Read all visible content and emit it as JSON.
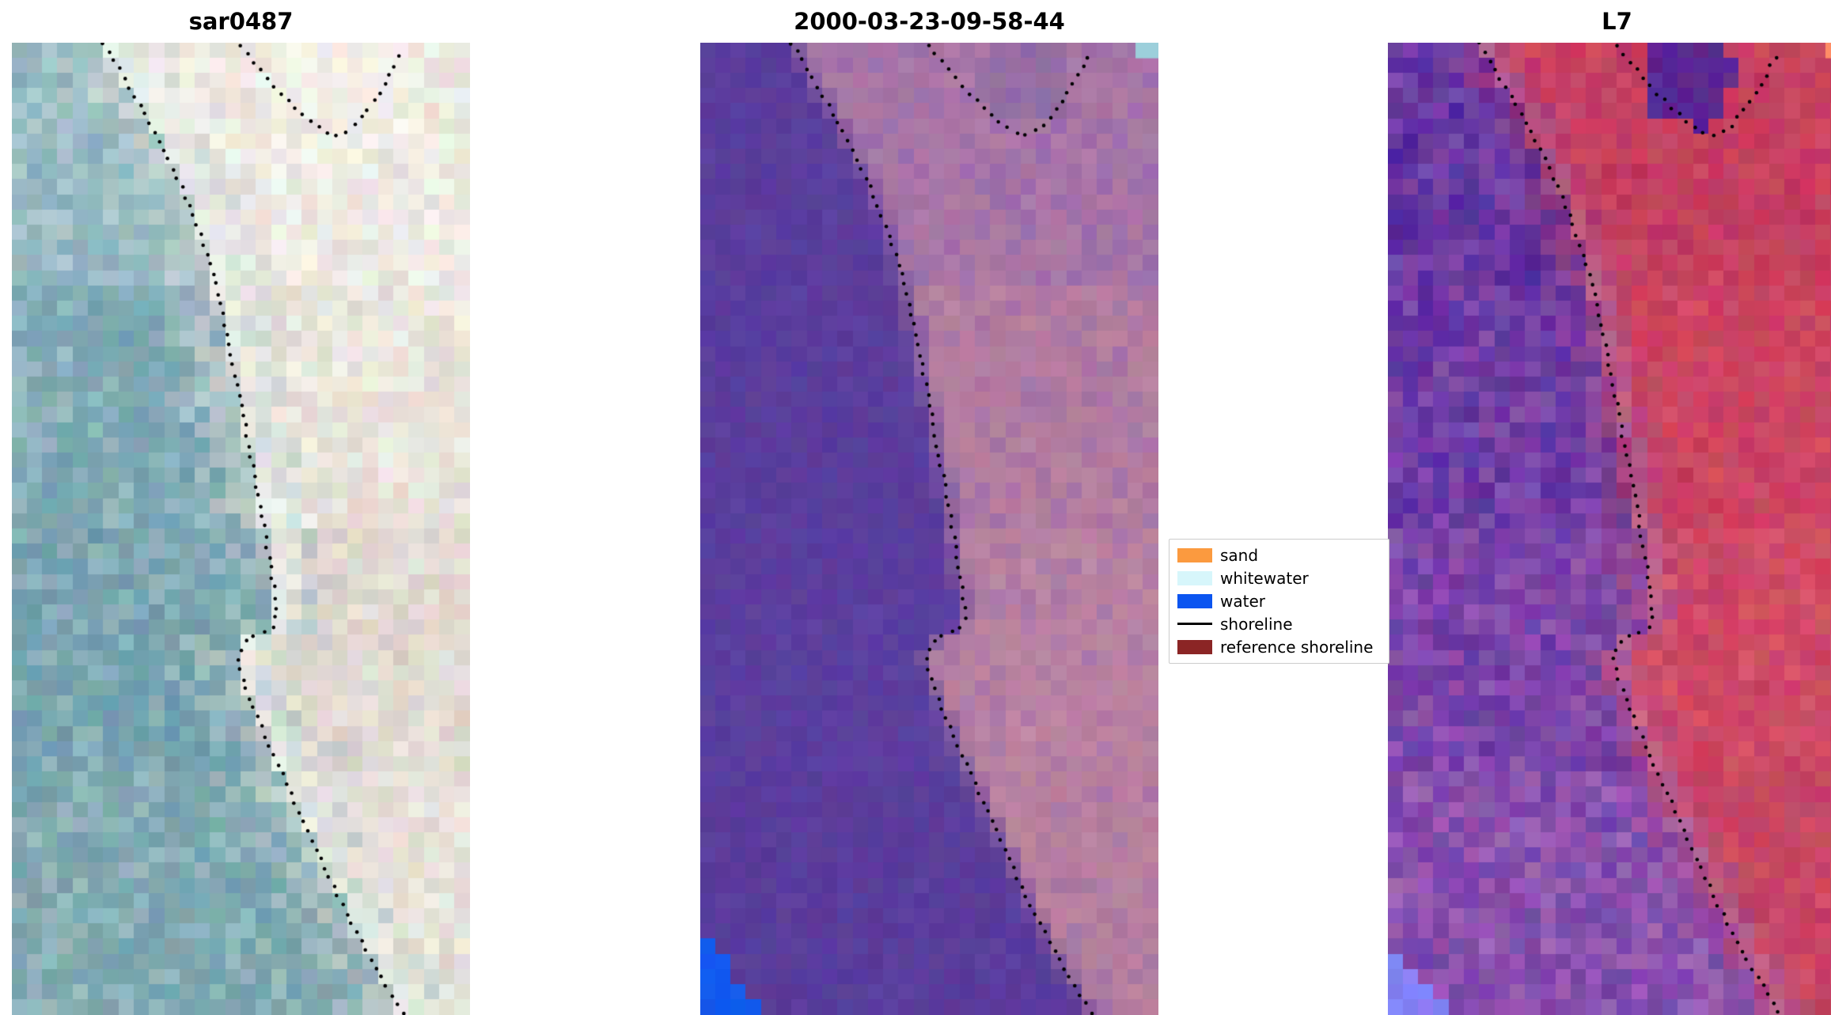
{
  "chart_data": {
    "type": "image",
    "panels": [
      {
        "title": "sar0487",
        "kind": "rgb-satellite-image",
        "render": {
          "seed": 11,
          "water": [
            "#a9c7cd",
            "#7fa9b4",
            "#6d9cab",
            "#7fa7ae"
          ],
          "land": [
            "#f4f2ec",
            "#ece7df",
            "#dcd2c8",
            "#e4ded4"
          ],
          "transition": 0.16,
          "noise": 0.45,
          "jitter": 10,
          "band": {
            "color": "#f8f7f1",
            "w": 0.1,
            "mix": 0.8
          },
          "corner_bl": null,
          "corner_tr": null,
          "blob": {
            "cx": 0.7,
            "cy": 0.035,
            "rx": 0.16,
            "ry": 0.06,
            "color": "#f5f3ea",
            "alpha": 0.8
          }
        }
      },
      {
        "title": "2000-03-23-09-58-44",
        "kind": "classified-image",
        "render": {
          "seed": 22,
          "water": [
            "#5a3d9c",
            "#5a3d9c",
            "#5c3fa0",
            "#593c9a"
          ],
          "land": [
            "#9d6dab",
            "#b27c9f",
            "#bd86a3",
            "#b77f9d"
          ],
          "transition": 0.035,
          "noise": 0.18,
          "jitter": 7,
          "band": null,
          "corner_bl": {
            "color": "#1159ee",
            "sy": 0.905,
            "mw": 0.135
          },
          "corner_tr": {
            "color": "#9ccfdb",
            "w": 0.05,
            "h": 0.016
          },
          "blob": {
            "cx": 0.7,
            "cy": 0.04,
            "rx": 0.13,
            "ry": 0.055,
            "color": "#84689f",
            "alpha": 0.5
          }
        }
      },
      {
        "title": "L7",
        "kind": "false-color-image",
        "render": {
          "seed": 33,
          "water": [
            "#552b9b",
            "#6535a2",
            "#8248ab",
            "#9c5fb5"
          ],
          "land": [
            "#c23a5e",
            "#ce4360",
            "#d34e68",
            "#c74763"
          ],
          "transition": 0.1,
          "noise": 0.35,
          "jitter": 12,
          "band": {
            "color": "#d88ca6",
            "w": 0.06,
            "mix": 0.45
          },
          "corner_bl": {
            "color": "#8580f6",
            "sy": 0.92,
            "mw": 0.13
          },
          "corner_tr": {
            "color": "#ff8d66",
            "w": 0.045,
            "h": 0.016
          },
          "blob": {
            "cx": 0.66,
            "cy": 0.035,
            "rx": 0.12,
            "ry": 0.06,
            "color": "#47229a",
            "alpha": 0.85
          }
        }
      }
    ],
    "legend": {
      "items": [
        {
          "label": "sand",
          "swatch": "rect",
          "color": "#fb9a3f"
        },
        {
          "label": "whitewater",
          "swatch": "rect",
          "color": "#d7f6fb"
        },
        {
          "label": "water",
          "swatch": "rect",
          "color": "#0b55f0"
        },
        {
          "label": "shoreline",
          "swatch": "line",
          "color": "#000000"
        },
        {
          "label": "reference shoreline",
          "swatch": "rect",
          "color": "#8b2525"
        }
      ]
    },
    "shoreline": {
      "main": [
        [
          0.2,
          0.0
        ],
        [
          0.235,
          0.028
        ],
        [
          0.27,
          0.056
        ],
        [
          0.305,
          0.086
        ],
        [
          0.34,
          0.118
        ],
        [
          0.372,
          0.15
        ],
        [
          0.4,
          0.182
        ],
        [
          0.424,
          0.214
        ],
        [
          0.445,
          0.248
        ],
        [
          0.463,
          0.285
        ],
        [
          0.48,
          0.324
        ],
        [
          0.497,
          0.364
        ],
        [
          0.513,
          0.404
        ],
        [
          0.529,
          0.444
        ],
        [
          0.545,
          0.484
        ],
        [
          0.558,
          0.52
        ],
        [
          0.57,
          0.554
        ],
        [
          0.58,
          0.588
        ],
        [
          0.568,
          0.602
        ],
        [
          0.516,
          0.612
        ],
        [
          0.492,
          0.63
        ],
        [
          0.504,
          0.655
        ],
        [
          0.525,
          0.681
        ],
        [
          0.548,
          0.707
        ],
        [
          0.571,
          0.732
        ],
        [
          0.595,
          0.757
        ],
        [
          0.619,
          0.782
        ],
        [
          0.643,
          0.807
        ],
        [
          0.667,
          0.832
        ],
        [
          0.691,
          0.857
        ],
        [
          0.716,
          0.882
        ],
        [
          0.743,
          0.907
        ],
        [
          0.771,
          0.932
        ],
        [
          0.801,
          0.957
        ],
        [
          0.832,
          0.982
        ],
        [
          0.856,
          1.0
        ]
      ],
      "branch": [
        [
          0.498,
          0.004
        ],
        [
          0.542,
          0.028
        ],
        [
          0.586,
          0.052
        ],
        [
          0.63,
          0.072
        ],
        [
          0.672,
          0.088
        ],
        [
          0.708,
          0.096
        ],
        [
          0.744,
          0.088
        ],
        [
          0.776,
          0.07
        ],
        [
          0.806,
          0.048
        ],
        [
          0.833,
          0.026
        ],
        [
          0.857,
          0.006
        ]
      ]
    }
  }
}
